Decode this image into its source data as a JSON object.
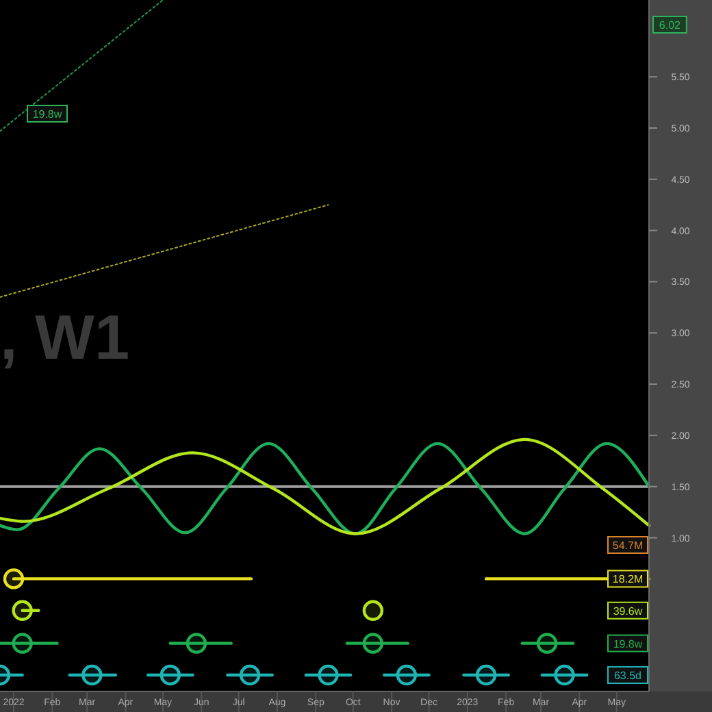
{
  "chart_data": {
    "type": "line",
    "xlim": [
      "2021-12-21",
      "2023-05-27"
    ],
    "xticks": [
      {
        "value": "2022-01-01",
        "label": "2022"
      },
      {
        "value": "2022-02-01",
        "label": "Feb"
      },
      {
        "value": "2022-03-01",
        "label": "Mar"
      },
      {
        "value": "2022-04-01",
        "label": "Apr"
      },
      {
        "value": "2022-05-01",
        "label": "May"
      },
      {
        "value": "2022-06-01",
        "label": "Jun"
      },
      {
        "value": "2022-07-01",
        "label": "Jul"
      },
      {
        "value": "2022-08-01",
        "label": "Aug"
      },
      {
        "value": "2022-09-01",
        "label": "Sep"
      },
      {
        "value": "2022-10-01",
        "label": "Oct"
      },
      {
        "value": "2022-11-01",
        "label": "Nov"
      },
      {
        "value": "2022-12-01",
        "label": "Dec"
      },
      {
        "value": "2023-01-01",
        "label": "2023"
      },
      {
        "value": "2023-02-01",
        "label": "Feb"
      },
      {
        "value": "2023-03-01",
        "label": "Mar"
      },
      {
        "value": "2023-04-01",
        "label": "Apr"
      },
      {
        "value": "2023-05-01",
        "label": "May"
      }
    ],
    "ylim": [
      -0.5,
      6.25
    ],
    "yticks": [
      {
        "value": 1,
        "label": "1.00"
      },
      {
        "value": 1.5,
        "label": "1.50"
      },
      {
        "value": 2,
        "label": "2.00"
      },
      {
        "value": 2.5,
        "label": "2.50"
      },
      {
        "value": 3,
        "label": "3.00"
      },
      {
        "value": 3.5,
        "label": "3.50"
      },
      {
        "value": 4,
        "label": "4.00"
      },
      {
        "value": 4.5,
        "label": "4.50"
      },
      {
        "value": 5,
        "label": "5.00"
      },
      {
        "value": 5.5,
        "label": "5.50"
      }
    ],
    "ref_lines": [
      {
        "axis": "y",
        "value": 1.5,
        "color": "#a0a0a0"
      }
    ],
    "annotations": [
      ", W1",
      "19.8w",
      "54.7M",
      "6.02"
    ],
    "series": [
      {
        "color": "#1fae5a",
        "x": [
          "2021-12-21",
          "2022-01-04",
          "2022-02-06",
          "2022-03-11",
          "2022-04-14",
          "2022-05-19",
          "2022-06-21",
          "2022-07-25",
          "2022-08-29",
          "2022-10-03",
          "2022-11-04",
          "2022-12-08",
          "2023-01-12",
          "2023-02-16",
          "2023-03-20",
          "2023-04-23",
          "2023-05-27"
        ],
        "values": [
          1.12,
          1.08,
          1.48,
          1.87,
          1.48,
          1.05,
          1.48,
          1.92,
          1.48,
          1.04,
          1.48,
          1.92,
          1.48,
          1.04,
          1.48,
          1.92,
          1.5
        ]
      },
      {
        "color": "#b4e61e",
        "x": [
          "2021-12-21",
          "2022-01-09",
          "2022-03-18",
          "2022-05-25",
          "2022-07-29",
          "2022-10-03",
          "2022-12-10",
          "2023-02-16",
          "2023-04-20",
          "2023-05-27"
        ],
        "values": [
          1.19,
          1.16,
          1.48,
          1.83,
          1.48,
          1.04,
          1.48,
          1.96,
          1.48,
          1.12
        ]
      },
      {
        "color": "#1f9a55",
        "line_style": "dotted",
        "x": [
          "2021-12-21",
          "2022-05-01"
        ],
        "values": [
          4.97,
          6.25
        ]
      },
      {
        "color": "#a8a820",
        "line_style": "dotted",
        "x": [
          "2021-12-21",
          "2022-09-11"
        ],
        "values": [
          3.35,
          4.25
        ]
      },
      {
        "color": "#e8e020",
        "x": [
          "2022-01-01",
          "2022-07-11",
          "2022-10-01",
          "2023-01-16",
          "2023-05-27"
        ],
        "values": [
          0.6,
          0.6,
          null,
          0.6,
          0.6
        ]
      },
      {
        "color": "#b4e61e",
        "x": [
          "2022-01-08",
          "2022-01-21"
        ],
        "values": [
          0.29,
          0.29
        ]
      },
      {
        "color": "#1fae4f",
        "x": [
          "2021-12-21",
          "2022-02-05",
          "2022-04-01",
          "2022-05-07",
          "2022-06-25",
          "2022-08-01",
          "2022-09-26",
          "2022-11-14",
          "2023-01-01",
          "2023-02-14",
          "2023-03-27"
        ],
        "values": [
          -0.03,
          -0.03,
          null,
          -0.03,
          -0.03,
          null,
          -0.03,
          -0.03,
          null,
          -0.03,
          -0.03
        ]
      },
      {
        "color": "#1fb5b5",
        "x": [
          "2021-12-21",
          "2022-01-08",
          "2022-02-01",
          "2022-02-15",
          "2022-03-24",
          "2022-04-05",
          "2022-04-19",
          "2022-05-25",
          "2022-06-10",
          "2022-06-22",
          "2022-07-28",
          "2022-08-10",
          "2022-08-24",
          "2022-09-29",
          "2022-10-12",
          "2022-10-26",
          "2022-12-01",
          "2022-12-15",
          "2022-12-29",
          "2023-02-03",
          "2023-02-17",
          "2023-03-02",
          "2023-04-07"
        ],
        "values": [
          -0.34,
          -0.34,
          null,
          -0.34,
          -0.34,
          null,
          -0.34,
          -0.34,
          null,
          -0.34,
          -0.34,
          null,
          -0.34,
          -0.34,
          null,
          -0.34,
          -0.34,
          null,
          -0.34,
          -0.34,
          null,
          -0.34,
          -0.34
        ]
      },
      {
        "type": "scatter",
        "name": "18.2M",
        "color": "#e8e020",
        "marker": "circle",
        "x": [
          "2022-01-01"
        ],
        "values": [
          0.6
        ]
      },
      {
        "type": "scatter",
        "name": "39.6w",
        "color": "#b4e61e",
        "marker": "circle",
        "x": [
          "2022-01-08",
          "2022-10-17"
        ],
        "values": [
          0.29,
          0.29
        ]
      },
      {
        "type": "scatter",
        "name": "19.8w",
        "color": "#1fae4f",
        "marker": "circle",
        "x": [
          "2022-01-08",
          "2022-05-28",
          "2022-10-17",
          "2023-03-06"
        ],
        "values": [
          -0.03,
          -0.03,
          -0.03,
          -0.03
        ]
      },
      {
        "type": "scatter",
        "name": "63.5d",
        "color": "#1fb5b5",
        "marker": "circle",
        "x": [
          "2021-12-21",
          "2022-03-05",
          "2022-05-07",
          "2022-07-10",
          "2022-09-11",
          "2022-11-13",
          "2023-01-16",
          "2023-03-20"
        ],
        "values": [
          -0.34,
          -0.34,
          -0.34,
          -0.34,
          -0.34,
          -0.34,
          -0.34,
          -0.34
        ]
      }
    ]
  }
}
